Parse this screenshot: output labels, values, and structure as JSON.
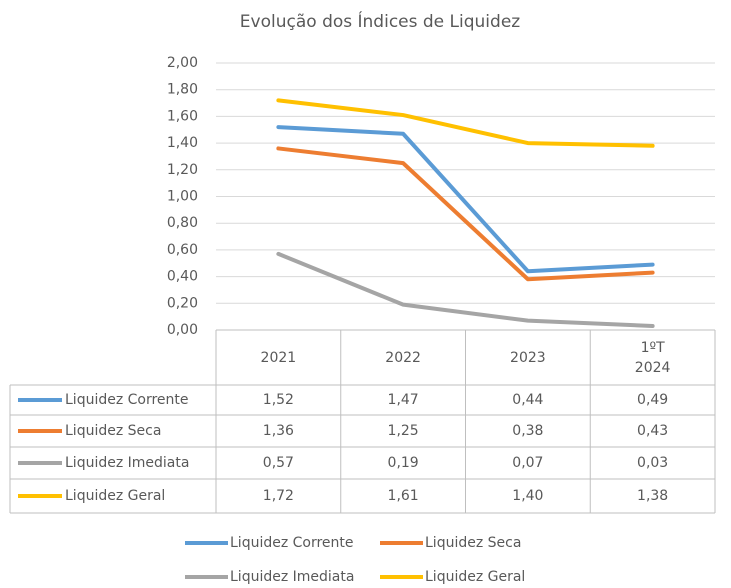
{
  "chart_data": {
    "type": "line",
    "title": "Evolução dos Índices de Liquidez",
    "categories": [
      "2021",
      "2022",
      "2023",
      "1ºT 2024"
    ],
    "series": [
      {
        "name": "Liquidez Corrente",
        "color": "#5b9bd5",
        "values": [
          1.52,
          1.47,
          0.44,
          0.49
        ],
        "value_labels": [
          "1,52",
          "1,47",
          "0,44",
          "0,49"
        ]
      },
      {
        "name": "Liquidez Seca",
        "color": "#ed7d31",
        "values": [
          1.36,
          1.25,
          0.38,
          0.43
        ],
        "value_labels": [
          "1,36",
          "1,25",
          "0,38",
          "0,43"
        ]
      },
      {
        "name": "Liquidez Imediata",
        "color": "#a5a5a5",
        "values": [
          0.57,
          0.19,
          0.07,
          0.03
        ],
        "value_labels": [
          "0,57",
          "0,19",
          "0,07",
          "0,03"
        ]
      },
      {
        "name": "Liquidez Geral",
        "color": "#ffc000",
        "values": [
          1.72,
          1.61,
          1.4,
          1.38
        ],
        "value_labels": [
          "1,72",
          "1,61",
          "1,40",
          "1,38"
        ]
      }
    ],
    "ylim": [
      0,
      2
    ],
    "yticks": [
      {
        "value": 0,
        "label": "0,00"
      },
      {
        "value": 0.2,
        "label": "0,20"
      },
      {
        "value": 0.4,
        "label": "0,40"
      },
      {
        "value": 0.6,
        "label": "0,60"
      },
      {
        "value": 0.8,
        "label": "0,80"
      },
      {
        "value": 1,
        "label": "1,00"
      },
      {
        "value": 1.2,
        "label": "1,20"
      },
      {
        "value": 1.4,
        "label": "1,40"
      },
      {
        "value": 1.6,
        "label": "1,60"
      },
      {
        "value": 1.8,
        "label": "1,80"
      },
      {
        "value": 2,
        "label": "2,00"
      }
    ],
    "grid": true
  }
}
